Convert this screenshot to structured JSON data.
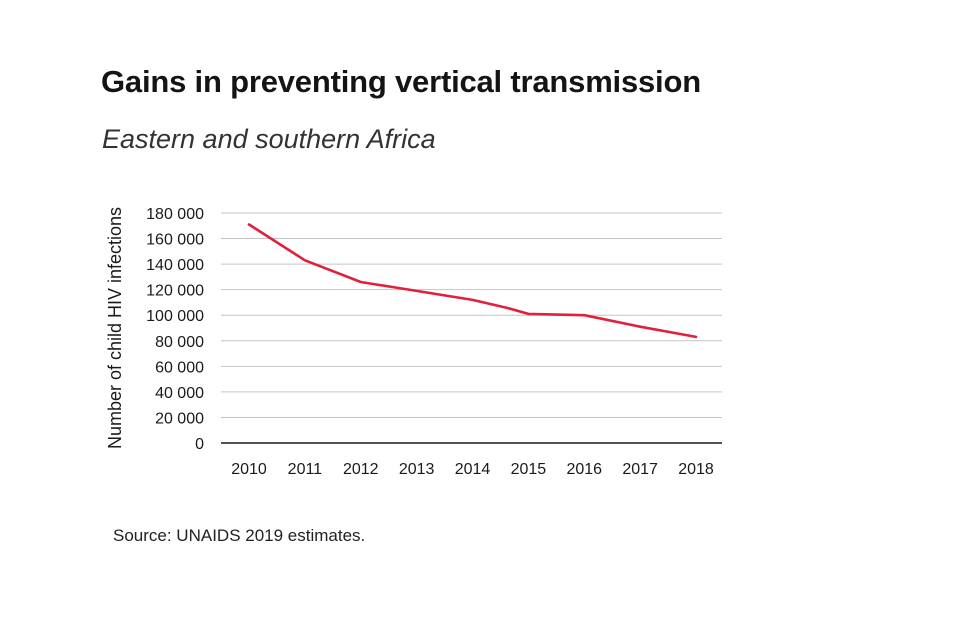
{
  "header": {
    "title": "Gains in preventing vertical transmission",
    "subtitle": "Eastern and southern Africa"
  },
  "footer": {
    "source": "Source: UNAIDS 2019 estimates."
  },
  "chart_data": {
    "type": "line",
    "title": "Gains in preventing vertical transmission",
    "subtitle": "Eastern and southern Africa",
    "xlabel": "",
    "ylabel": "Number of child HIV infections",
    "categories": [
      "2010",
      "2011",
      "2012",
      "2013",
      "2014",
      "2015",
      "2016",
      "2017",
      "2018"
    ],
    "series": [
      {
        "color": "#e0203c",
        "x": [
          2010,
          2011,
          2012,
          2013,
          2014,
          2014.6,
          2015,
          2016,
          2017,
          2018
        ],
        "values": [
          171000,
          143000,
          126000,
          119000,
          112000,
          106000,
          101000,
          100000,
          91000,
          83000
        ]
      }
    ],
    "ylim": [
      0,
      180000
    ],
    "yticks": [
      0,
      20000,
      40000,
      60000,
      80000,
      100000,
      120000,
      140000,
      160000,
      180000
    ],
    "ytick_labels": [
      "0",
      "20 000",
      "40 000",
      "60 000",
      "80 000",
      "100 000",
      "120 000",
      "140 000",
      "160 000",
      "180 000"
    ],
    "grid": true,
    "legend": "none"
  }
}
